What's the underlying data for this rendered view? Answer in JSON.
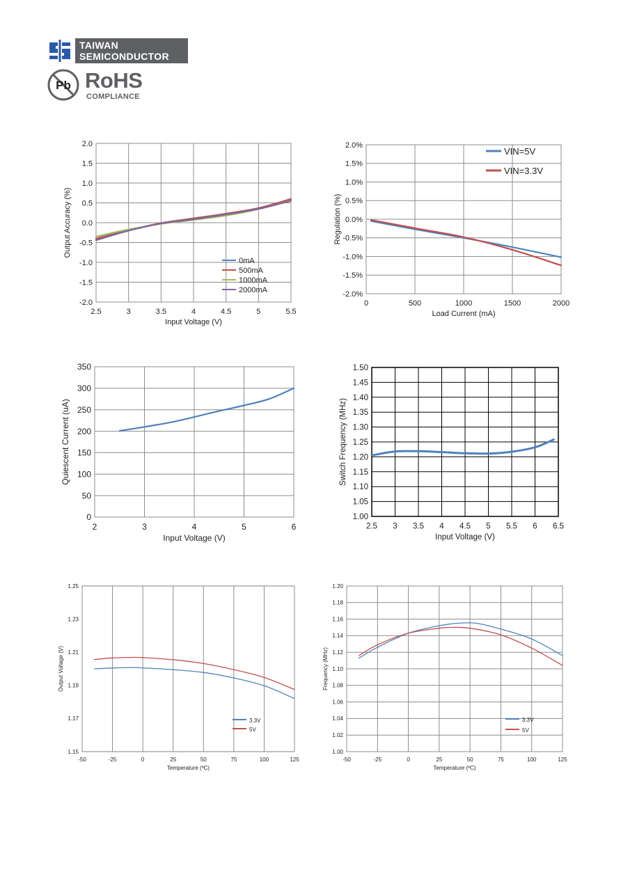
{
  "header": {
    "company_line1": "TAIWAN",
    "company_line2": "SEMICONDUCTOR",
    "pb_text": "Pb",
    "rohs_title": "RoHS",
    "rohs_sub": "COMPLIANCE"
  },
  "colors": {
    "blue": "#4f81bd",
    "red": "#c0504d",
    "green": "#9bbb59",
    "purple": "#8064a2",
    "brand_gray": "#5e6064"
  },
  "chart_data": [
    {
      "id": "c1",
      "type": "line",
      "xlabel": "Input Voltage (V)",
      "ylabel": "Output Accuracy (%)",
      "xlim": [
        2.5,
        5.5
      ],
      "ylim": [
        -2.0,
        2.0
      ],
      "xticks": [
        2.5,
        3,
        3.5,
        4,
        4.5,
        5,
        5.5
      ],
      "xtick_labels": [
        "2.5",
        "3",
        "3.5",
        "4",
        "4.5",
        "5",
        "5.5"
      ],
      "yticks": [
        -2,
        -1.5,
        -1,
        -0.5,
        0,
        0.5,
        1,
        1.5,
        2
      ],
      "ytick_labels": [
        "-2.0",
        "-1.5",
        "-1.0",
        "-0.5",
        "0.0",
        "0.5",
        "1.0",
        "1.5",
        "2.0"
      ],
      "grid": true,
      "legend": "bottom-right",
      "series": [
        {
          "name": "0mA",
          "color": "#4f81bd",
          "x": [
            2.5,
            3,
            3.5,
            4,
            4.5,
            5,
            5.5
          ],
          "y": [
            -0.42,
            -0.2,
            -0.02,
            0.1,
            0.22,
            0.36,
            0.58
          ]
        },
        {
          "name": "500mA",
          "color": "#c0504d",
          "x": [
            2.5,
            3,
            3.5,
            4,
            4.5,
            5,
            5.5
          ],
          "y": [
            -0.4,
            -0.19,
            -0.01,
            0.11,
            0.23,
            0.37,
            0.6
          ]
        },
        {
          "name": "1000mA",
          "color": "#9bbb59",
          "x": [
            2.5,
            3,
            3.5,
            4,
            4.5,
            5,
            5.5
          ],
          "y": [
            -0.35,
            -0.17,
            -0.03,
            0.07,
            0.18,
            0.34,
            0.56
          ]
        },
        {
          "name": "2000mA",
          "color": "#8064a2",
          "x": [
            2.5,
            3,
            3.5,
            4,
            4.5,
            5,
            5.5
          ],
          "y": [
            -0.44,
            -0.2,
            -0.02,
            0.09,
            0.21,
            0.35,
            0.55
          ]
        }
      ]
    },
    {
      "id": "c2",
      "type": "line",
      "xlabel": "Load Current (mA)",
      "ylabel": "Regulation (%)",
      "xlim": [
        0,
        2000
      ],
      "ylim": [
        -2.0,
        2.0
      ],
      "xticks": [
        0,
        500,
        1000,
        1500,
        2000
      ],
      "xtick_labels": [
        "0",
        "500",
        "1000",
        "1500",
        "2000"
      ],
      "yticks": [
        -2,
        -1.5,
        -1,
        -0.5,
        0,
        0.5,
        1,
        1.5,
        2
      ],
      "ytick_labels": [
        "-2.0%",
        "-1.5%",
        "-1.0%",
        "-0.5%",
        "0.0%",
        "0.5%",
        "1.0%",
        "1.5%",
        "2.0%"
      ],
      "grid": true,
      "legend": "top-right",
      "series": [
        {
          "name": "VIN=5V",
          "color": "#4f81bd",
          "x": [
            50,
            500,
            1000,
            1500,
            2000
          ],
          "y": [
            -0.05,
            -0.27,
            -0.5,
            -0.75,
            -1.02
          ]
        },
        {
          "name": "VIN=3.3V",
          "color": "#c0504d",
          "x": [
            50,
            500,
            1000,
            1500,
            2000
          ],
          "y": [
            -0.02,
            -0.24,
            -0.48,
            -0.82,
            -1.24
          ]
        }
      ]
    },
    {
      "id": "c3",
      "type": "line",
      "xlabel": "Input Voltage (V)",
      "ylabel": "Quiescent Current (uA)",
      "xlim": [
        2,
        6
      ],
      "ylim": [
        0,
        350
      ],
      "xticks": [
        2,
        3,
        4,
        5,
        6
      ],
      "xtick_labels": [
        "2",
        "3",
        "4",
        "5",
        "6"
      ],
      "yticks": [
        0,
        50,
        100,
        150,
        200,
        250,
        300,
        350
      ],
      "ytick_labels": [
        "0",
        "50",
        "100",
        "150",
        "200",
        "250",
        "300",
        "350"
      ],
      "grid": true,
      "series": [
        {
          "color": "#4f81bd",
          "x": [
            2.5,
            3,
            3.5,
            4,
            4.5,
            5,
            5.5,
            6
          ],
          "y": [
            201,
            210,
            220,
            233,
            247,
            260,
            275,
            300
          ]
        }
      ]
    },
    {
      "id": "c4",
      "type": "line",
      "xlabel": "Input Voltage (V)",
      "ylabel": "Switch Frequency  (MHz)",
      "xlim": [
        2.5,
        6.5
      ],
      "ylim": [
        1.0,
        1.5
      ],
      "xticks": [
        2.5,
        3,
        3.5,
        4,
        4.5,
        5,
        5.5,
        6,
        6.5
      ],
      "xtick_labels": [
        "2.5",
        "3",
        "3.5",
        "4",
        "4.5",
        "5",
        "5.5",
        "6",
        "6.5"
      ],
      "yticks": [
        1.0,
        1.05,
        1.1,
        1.15,
        1.2,
        1.25,
        1.3,
        1.35,
        1.4,
        1.45,
        1.5
      ],
      "ytick_labels": [
        "1.00",
        "1.05",
        "1.10",
        "1.15",
        "1.20",
        "1.25",
        "1.30",
        "1.35",
        "1.40",
        "1.45",
        "1.50"
      ],
      "grid": true,
      "gridcolor": "#000000",
      "thick": true,
      "series": [
        {
          "color": "#4f81bd",
          "x": [
            2.5,
            3,
            3.5,
            4,
            4.5,
            5,
            5.5,
            6,
            6.4
          ],
          "y": [
            1.205,
            1.218,
            1.219,
            1.216,
            1.212,
            1.211,
            1.217,
            1.232,
            1.258
          ]
        }
      ]
    },
    {
      "id": "c5",
      "type": "line",
      "xlabel": "Temperature (ºC)",
      "ylabel": "Output Voltage (V)",
      "xlim": [
        -50,
        125
      ],
      "ylim": [
        1.15,
        1.25
      ],
      "xticks": [
        -50,
        -25,
        0,
        25,
        50,
        75,
        100,
        125
      ],
      "xtick_labels": [
        "-50",
        "-25",
        "0",
        "25",
        "50",
        "75",
        "100",
        "125"
      ],
      "yticks": [
        1.15,
        1.17,
        1.19,
        1.21,
        1.23,
        1.25
      ],
      "ytick_labels": [
        "1.15",
        "1.17",
        "1.19",
        "1.21",
        "1.23",
        "1.25"
      ],
      "grid": true,
      "xgrid_only": true,
      "legend": "bottom-right",
      "series": [
        {
          "name": "3.3V",
          "color": "#4f81bd",
          "x": [
            -40,
            -25,
            -10,
            0,
            25,
            50,
            75,
            100,
            125
          ],
          "y": [
            1.2,
            1.2005,
            1.2008,
            1.2006,
            1.1995,
            1.1978,
            1.1945,
            1.1898,
            1.182
          ]
        },
        {
          "name": "5V",
          "color": "#c0504d",
          "x": [
            -40,
            -25,
            -10,
            0,
            25,
            50,
            75,
            100,
            125
          ],
          "y": [
            1.2056,
            1.2066,
            1.2069,
            1.2068,
            1.2055,
            1.2032,
            1.1995,
            1.1948,
            1.1875
          ]
        }
      ]
    },
    {
      "id": "c6",
      "type": "line",
      "xlabel": "Temperature (ºC)",
      "ylabel": "Frequency (MHz)",
      "xlim": [
        -50,
        125
      ],
      "ylim": [
        1.0,
        1.2
      ],
      "xticks": [
        -50,
        -25,
        0,
        25,
        50,
        75,
        100,
        125
      ],
      "xtick_labels": [
        "-50",
        "-25",
        "0",
        "25",
        "50",
        "75",
        "100",
        "125"
      ],
      "yticks": [
        1.0,
        1.02,
        1.04,
        1.06,
        1.08,
        1.1,
        1.12,
        1.14,
        1.16,
        1.18,
        1.2
      ],
      "ytick_labels": [
        "1.00",
        "1.02",
        "1.04",
        "1.06",
        "1.08",
        "1.10",
        "1.12",
        "1.14",
        "1.16",
        "1.18",
        "1.20"
      ],
      "grid": true,
      "legend": "bottom-right",
      "series": [
        {
          "name": "3.3V",
          "color": "#4f81bd",
          "x": [
            -40,
            -25,
            0,
            25,
            40,
            55,
            75,
            100,
            125
          ],
          "y": [
            1.113,
            1.126,
            1.143,
            1.152,
            1.155,
            1.155,
            1.148,
            1.136,
            1.116
          ]
        },
        {
          "name": "5V",
          "color": "#c0504d",
          "x": [
            -40,
            -25,
            0,
            25,
            35,
            50,
            75,
            100,
            125
          ],
          "y": [
            1.116,
            1.129,
            1.143,
            1.149,
            1.15,
            1.149,
            1.141,
            1.125,
            1.104
          ]
        }
      ]
    }
  ]
}
